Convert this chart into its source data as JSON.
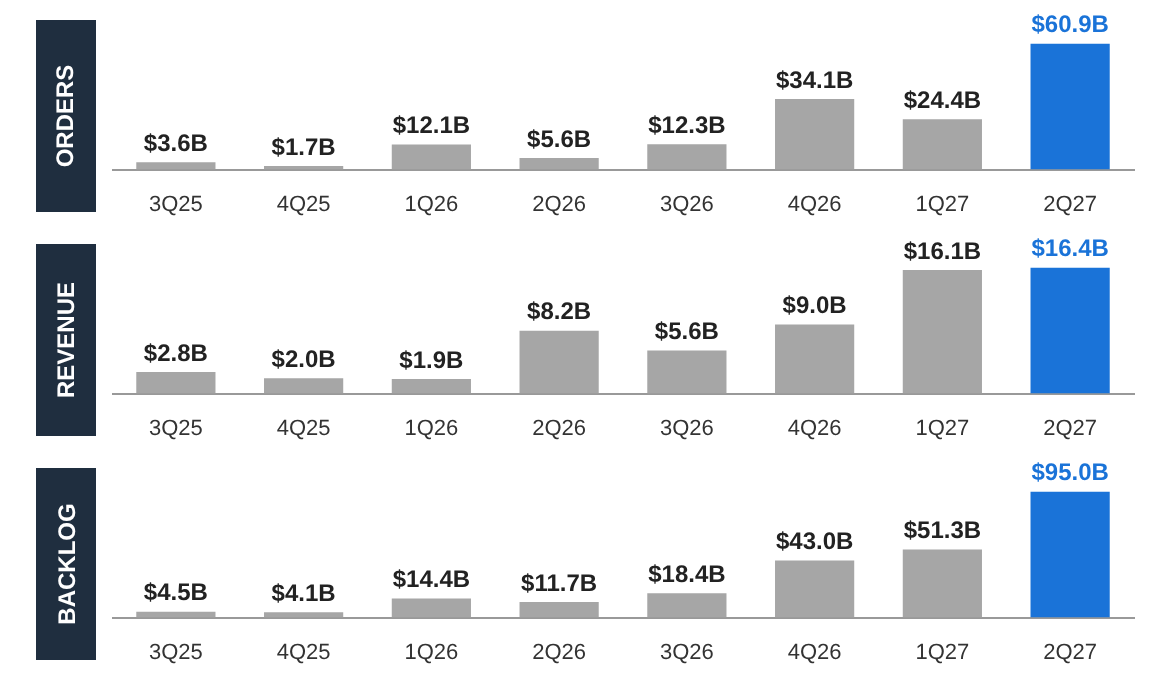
{
  "chart_data": [
    {
      "type": "bar",
      "ylabel": "ORDERS",
      "categories": [
        "3Q25",
        "4Q25",
        "1Q26",
        "2Q26",
        "3Q26",
        "4Q26",
        "1Q27",
        "2Q27"
      ],
      "values": [
        3.6,
        1.7,
        12.1,
        5.6,
        12.3,
        34.1,
        24.4,
        60.9
      ],
      "value_labels": [
        "$3.6B",
        "$1.7B",
        "$12.1B",
        "$5.6B",
        "$12.3B",
        "$34.1B",
        "$24.4B",
        "$60.9B"
      ],
      "colors": [
        "#a6a6a6",
        "#a6a6a6",
        "#a6a6a6",
        "#a6a6a6",
        "#a6a6a6",
        "#a6a6a6",
        "#a6a6a6",
        "#1a73d8"
      ]
    },
    {
      "type": "bar",
      "ylabel": "REVENUE",
      "categories": [
        "3Q25",
        "4Q25",
        "1Q26",
        "2Q26",
        "3Q26",
        "4Q26",
        "1Q27",
        "2Q27"
      ],
      "values": [
        2.8,
        2.0,
        1.9,
        8.2,
        5.6,
        9.0,
        16.1,
        16.4
      ],
      "value_labels": [
        "$2.8B",
        "$2.0B",
        "$1.9B",
        "$8.2B",
        "$5.6B",
        "$9.0B",
        "$16.1B",
        "$16.4B"
      ],
      "colors": [
        "#a6a6a6",
        "#a6a6a6",
        "#a6a6a6",
        "#a6a6a6",
        "#a6a6a6",
        "#a6a6a6",
        "#a6a6a6",
        "#1a73d8"
      ]
    },
    {
      "type": "bar",
      "ylabel": "BACKLOG",
      "categories": [
        "3Q25",
        "4Q25",
        "1Q26",
        "2Q26",
        "3Q26",
        "4Q26",
        "1Q27",
        "2Q27"
      ],
      "values": [
        4.5,
        4.1,
        14.4,
        11.7,
        18.4,
        43.0,
        51.3,
        95.0
      ],
      "value_labels": [
        "$4.5B",
        "$4.1B",
        "$14.4B",
        "$11.7B",
        "$18.4B",
        "$43.0B",
        "$51.3B",
        "$95.0B"
      ],
      "colors": [
        "#a6a6a6",
        "#a6a6a6",
        "#a6a6a6",
        "#a6a6a6",
        "#a6a6a6",
        "#a6a6a6",
        "#a6a6a6",
        "#1a73d8"
      ]
    }
  ]
}
